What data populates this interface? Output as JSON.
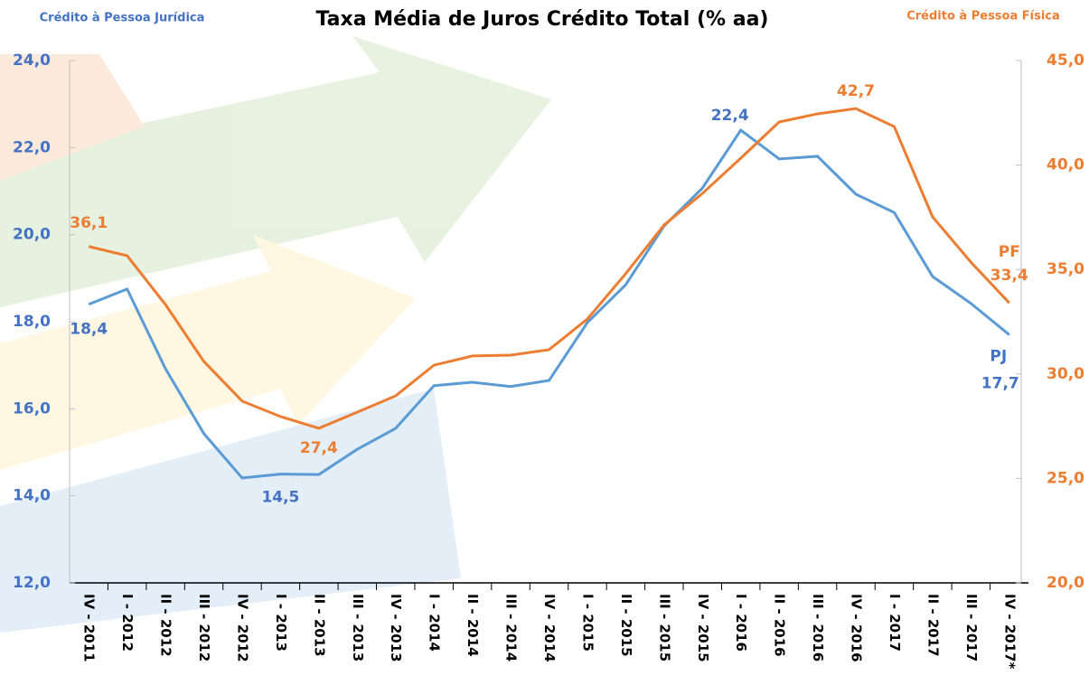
{
  "chart_data": {
    "type": "line",
    "title": "Taxa Média de Juros Crédito Total (% aa)",
    "y_label": "Crédito à Pessoa Jurídica",
    "y2_label": "Crédito à Pessoa Física",
    "categories": [
      "IV - 2011",
      "I - 2012",
      "II - 2012",
      "III - 2012",
      "IV - 2012",
      "I - 2013",
      "II - 2013",
      "III - 2013",
      "IV - 2013",
      "I - 2014",
      "II - 2014",
      "III - 2014",
      "IV - 2014",
      "I - 2015",
      "II - 2015",
      "III - 2015",
      "IV - 2015",
      "I - 2016",
      "II - 2016",
      "III - 2016",
      "IV - 2016",
      "I - 2017",
      "II - 2017",
      "III - 2017",
      "IV - 2017*"
    ],
    "series": [
      {
        "name": "PJ",
        "color": "#5b9bd5",
        "label_color": "#4472c4",
        "axis": "y",
        "values": [
          18.4,
          18.75,
          16.92,
          15.43,
          14.41,
          14.5,
          14.49,
          15.07,
          15.55,
          16.53,
          16.61,
          16.51,
          16.65,
          17.98,
          18.85,
          20.2,
          21.07,
          22.4,
          21.74,
          21.8,
          20.93,
          20.51,
          19.04,
          18.42,
          17.7
        ],
        "value_labels": [
          "18,4",
          null,
          null,
          null,
          null,
          "14,5",
          null,
          null,
          null,
          null,
          null,
          null,
          null,
          null,
          null,
          null,
          null,
          "22,4",
          null,
          null,
          null,
          null,
          null,
          null,
          "17,7"
        ]
      },
      {
        "name": "PF",
        "color": "#ed7d31",
        "label_color": "#ed7d31",
        "axis": "y2",
        "values": [
          36.1,
          35.66,
          33.32,
          30.6,
          28.7,
          27.96,
          27.4,
          28.17,
          28.95,
          30.42,
          30.86,
          30.9,
          31.16,
          32.63,
          34.8,
          37.13,
          38.64,
          40.33,
          42.06,
          42.45,
          42.7,
          41.84,
          37.52,
          35.35,
          33.4
        ],
        "value_labels": [
          "36,1",
          null,
          null,
          null,
          null,
          null,
          "27,4",
          null,
          null,
          null,
          null,
          null,
          null,
          null,
          null,
          null,
          null,
          null,
          null,
          null,
          "42,7",
          null,
          null,
          null,
          "33,4"
        ]
      }
    ],
    "ylim": [
      12,
      24
    ],
    "yticks": [
      {
        "value": 12,
        "label": "12,0"
      },
      {
        "value": 14,
        "label": "14,0"
      },
      {
        "value": 16,
        "label": "16,0"
      },
      {
        "value": 18,
        "label": "18,0"
      },
      {
        "value": 20,
        "label": "20,0"
      },
      {
        "value": 22,
        "label": "22,0"
      },
      {
        "value": 24,
        "label": "24,0"
      }
    ],
    "y2lim": [
      20,
      45
    ],
    "y2ticks": [
      {
        "value": 20,
        "label": "20,0"
      },
      {
        "value": 25,
        "label": "25,0"
      },
      {
        "value": 30,
        "label": "30,0"
      },
      {
        "value": 35,
        "label": "35,0"
      },
      {
        "value": 40,
        "label": "40,0"
      },
      {
        "value": 45,
        "label": "45,0"
      }
    ]
  }
}
